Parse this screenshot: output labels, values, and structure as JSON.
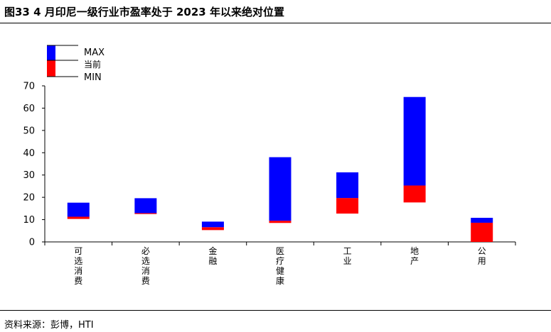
{
  "title": "图33 4 月印尼一级行业市盈率处于 2023 年以来绝对位置",
  "source": "资料来源：彭博，HTI",
  "colors": {
    "upper": "#0000FF",
    "lower": "#FF0000",
    "axis": "#000000"
  },
  "chart_data": {
    "type": "bar",
    "subtype": "floating-range",
    "legend": {
      "max": "MAX",
      "current": "当前",
      "min": "MIN",
      "placement": "top-left"
    },
    "categories": [
      "可选消费",
      "必选消费",
      "金融",
      "医疗健康",
      "工业",
      "地产",
      "公用"
    ],
    "max": [
      17.6,
      19.6,
      9.1,
      38.0,
      31.2,
      65.0,
      10.8
    ],
    "current": [
      11.3,
      12.9,
      6.6,
      9.5,
      19.7,
      25.3,
      8.6
    ],
    "min": [
      10.3,
      12.5,
      5.3,
      8.5,
      12.7,
      17.7,
      0.0
    ],
    "ylim": [
      0,
      70
    ],
    "yticks": [
      0,
      10,
      20,
      30,
      40,
      50,
      60,
      70
    ],
    "grid": false
  }
}
